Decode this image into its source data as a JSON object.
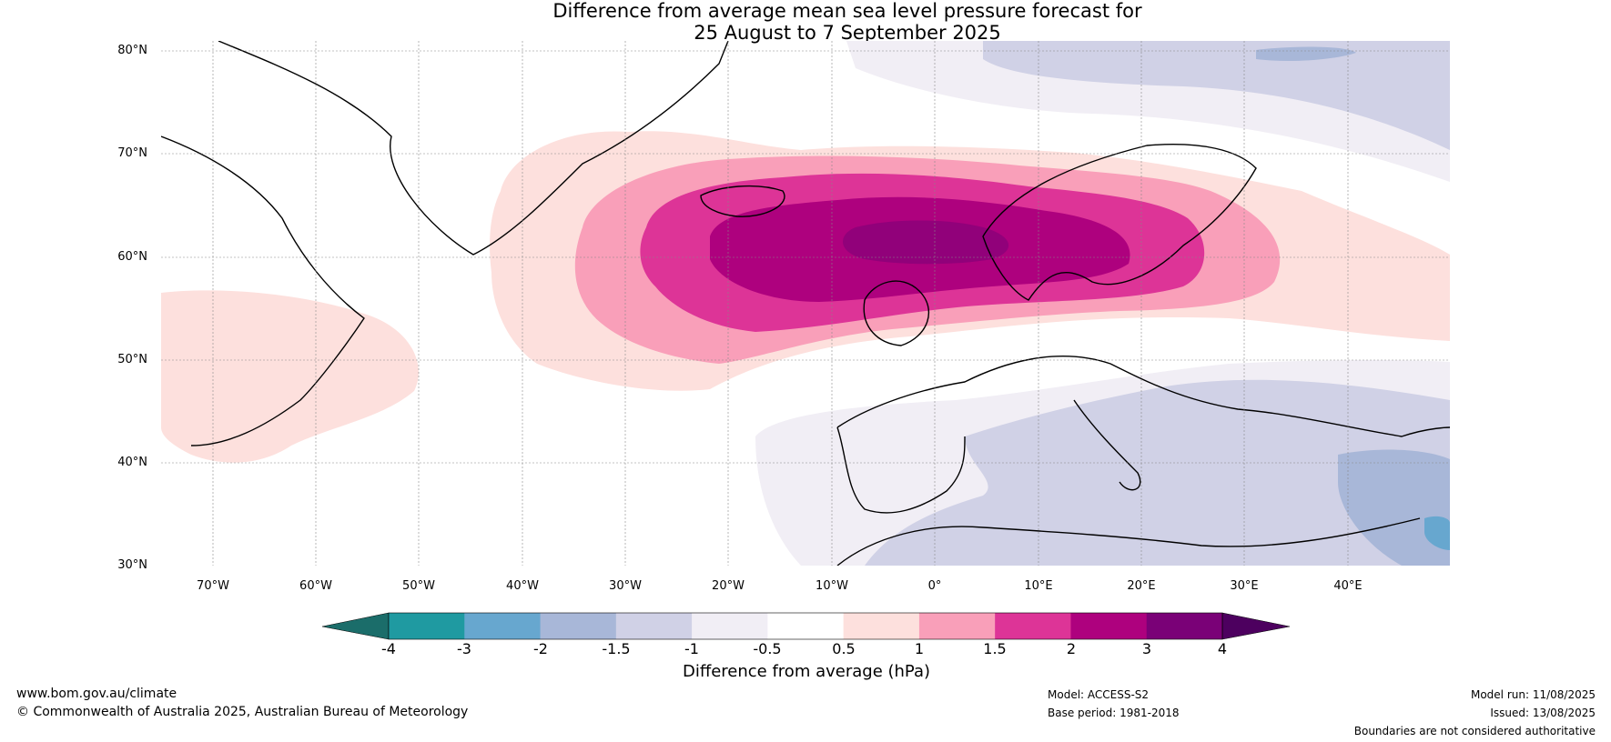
{
  "title": {
    "line1": "Difference from average mean sea level pressure forecast for",
    "line2": "25 August to 7 September 2025"
  },
  "map": {
    "lat_labels": [
      "80°N",
      "70°N",
      "60°N",
      "50°N",
      "40°N",
      "30°N"
    ],
    "lon_labels": [
      "70°W",
      "60°W",
      "50°W",
      "40°W",
      "30°W",
      "20°W",
      "10°W",
      "0°",
      "10°E",
      "20°E",
      "30°E",
      "40°E"
    ],
    "extent": {
      "lon": [
        -75,
        50
      ],
      "lat": [
        30,
        81
      ]
    },
    "anomaly_regions": [
      {
        "name": "north-atlantic-high",
        "center": [
          -2,
          62
        ],
        "peak_hpa": "3 to 4"
      },
      {
        "name": "mediterranean-low",
        "center": [
          25,
          42
        ],
        "peak_hpa": "-2 to -1.5"
      },
      {
        "name": "svalbard-low",
        "center": [
          25,
          79
        ],
        "peak_hpa": "-2 to -1.5"
      },
      {
        "name": "newfoundland-high",
        "center": [
          -65,
          49
        ],
        "peak_hpa": "0.5 to 1"
      }
    ]
  },
  "colorbar": {
    "ticks": [
      "-4",
      "-3",
      "-2",
      "-1.5",
      "-1",
      "-0.5",
      "0.5",
      "1",
      "1.5",
      "2",
      "3",
      "4"
    ],
    "colors": [
      "#1b6d6a",
      "#1f9aa1",
      "#67a7cf",
      "#a8b7d8",
      "#d0d1e6",
      "#f1eef5",
      "#ffffff",
      "#fde0dd",
      "#f99fb9",
      "#dd3497",
      "#ae017e",
      "#7a0177",
      "#4d005f"
    ],
    "title": "Difference from average (hPa)"
  },
  "footer": {
    "website": "www.bom.gov.au/climate",
    "copyright": "© Commonwealth of Australia 2025, Australian Bureau of Meteorology",
    "model": "Model: ACCESS-S2",
    "base_period": "Base period: 1981-2018",
    "model_run": "Model run: 11/08/2025",
    "issued": "Issued: 13/08/2025",
    "disclaimer": "Boundaries are not considered authoritative"
  }
}
